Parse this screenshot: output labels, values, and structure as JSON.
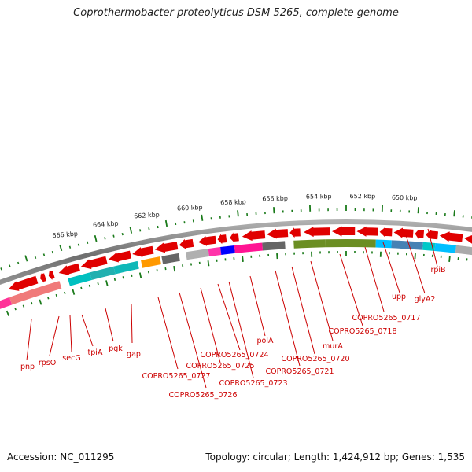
{
  "title": "Coprothermobacter proteolyticus DSM 5265, complete genome",
  "footer": {
    "accession": "Accession: NC_011295",
    "summary": "Topology: circular; Length: 1,424,912 bp; Genes: 1,535"
  },
  "kbp_labels": [
    "666 kbp",
    "664 kbp",
    "662 kbp",
    "660 kbp",
    "658 kbp",
    "656 kbp",
    "654 kbp",
    "652 kbp",
    "650 kbp"
  ],
  "gene_labels": [
    "pnp",
    "rpsO",
    "secG",
    "tpiA",
    "pgk",
    "gap",
    "COPRO5265_0727",
    "COPRO5265_0726",
    "COPRO5265_0725",
    "COPRO5265_0724",
    "COPRO5265_0723",
    "polA",
    "COPRO5265_0721",
    "COPRO5265_0720",
    "murA",
    "COPRO5265_0718",
    "COPRO5265_0717",
    "upp",
    "glyA2",
    "rpiB"
  ],
  "colors": {
    "gene_arrow": "#e00000",
    "tick": "#1a7a1a",
    "label": "#cc0000",
    "backbone": "#808080"
  }
}
